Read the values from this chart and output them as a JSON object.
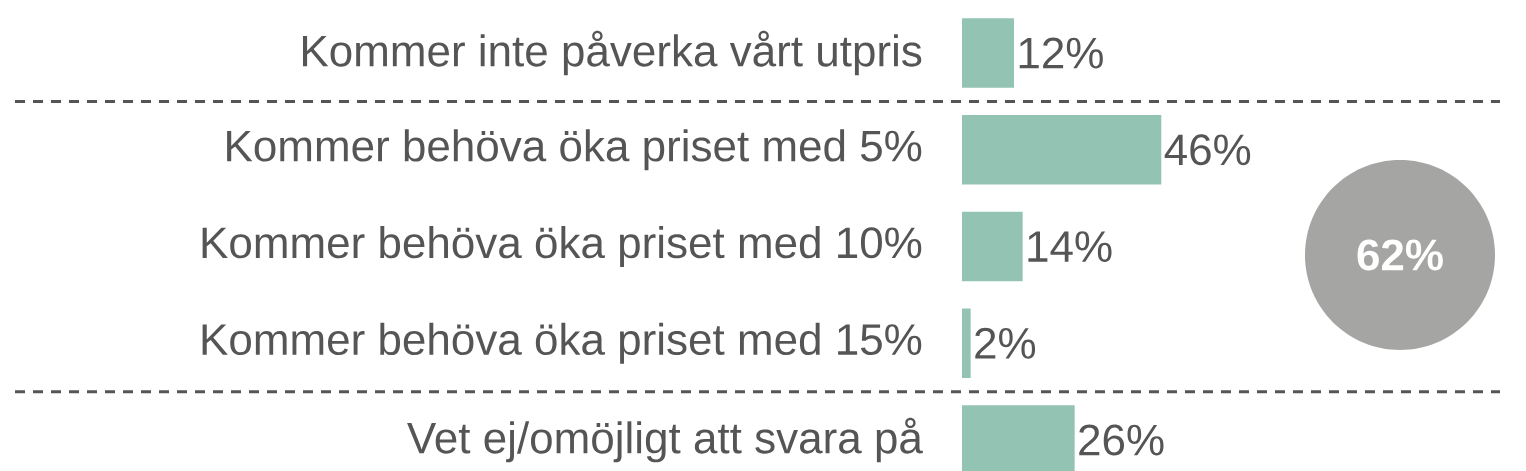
{
  "chart_data": {
    "type": "bar",
    "orientation": "horizontal",
    "categories": [
      "Kommer inte påverka vårt utpris",
      "Kommer behöva öka priset med 5%",
      "Kommer behöva öka priset med 10%",
      "Kommer behöva öka priset med 15%",
      "Vet ej/omöjligt att svara på"
    ],
    "values": [
      12,
      46,
      14,
      2,
      26
    ],
    "value_labels": [
      "12%",
      "46%",
      "14%",
      "2%",
      "26%"
    ],
    "color": "#93c4b3",
    "annotations": [
      "62%"
    ]
  }
}
